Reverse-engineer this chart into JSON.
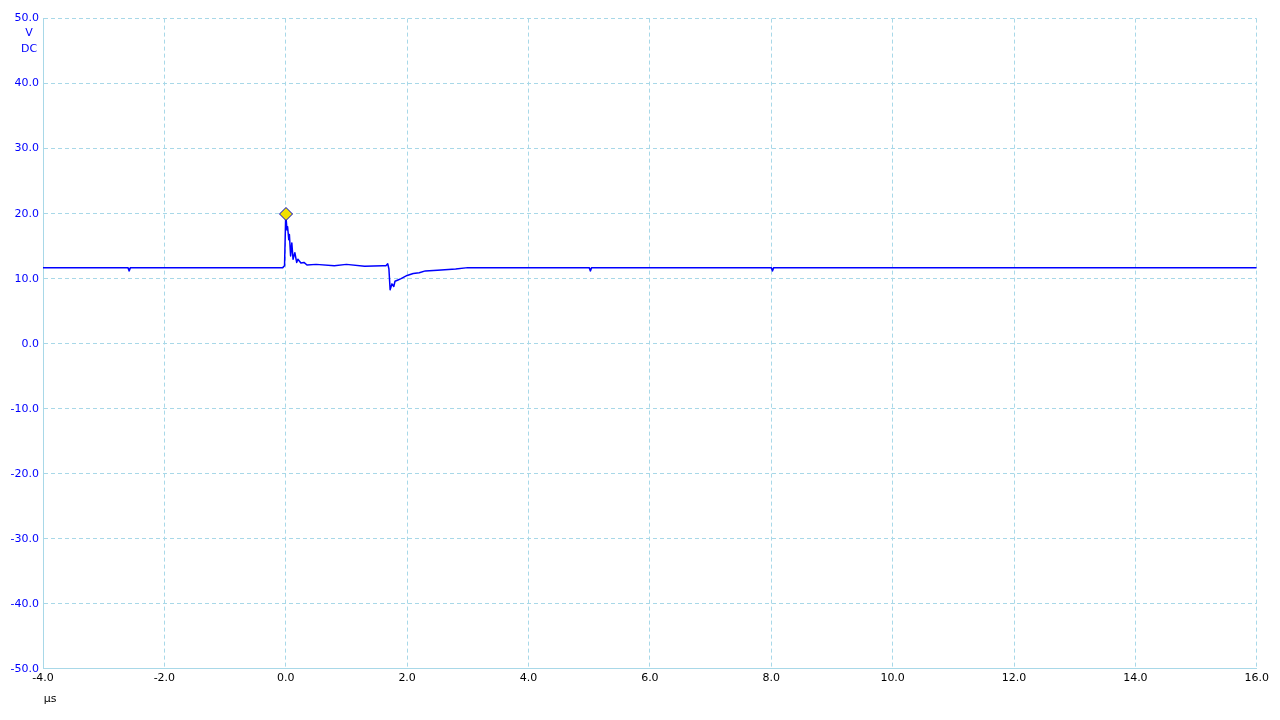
{
  "chart_data": {
    "type": "line",
    "xlabel": "µs",
    "ylabel": "V DC",
    "x": [
      -4,
      -2.6,
      -2.58,
      -2.56,
      -0.05,
      -0.02,
      0.0,
      0.02,
      0.03,
      0.05,
      0.06,
      0.08,
      0.1,
      0.12,
      0.15,
      0.18,
      0.2,
      0.25,
      0.3,
      0.35,
      0.5,
      0.8,
      1.0,
      1.3,
      1.6,
      1.65,
      1.68,
      1.7,
      1.72,
      1.75,
      1.78,
      1.8,
      1.85,
      1.9,
      2.0,
      2.1,
      2.2,
      2.3,
      2.5,
      2.8,
      3.0,
      5.0,
      5.02,
      5.04,
      8.0,
      8.02,
      8.04,
      12.0,
      16.0
    ],
    "series": [
      {
        "color": "#0000ff",
        "values": [
          11.7,
          11.7,
          11.2,
          11.7,
          11.7,
          12.0,
          20.0,
          17.5,
          18.0,
          16.0,
          16.8,
          13.5,
          15.5,
          13.0,
          14.0,
          12.5,
          13.0,
          12.4,
          12.5,
          12.1,
          12.2,
          12.0,
          12.2,
          11.9,
          12.0,
          12.0,
          12.3,
          11.5,
          8.3,
          9.2,
          8.8,
          9.6,
          9.8,
          10.0,
          10.5,
          10.8,
          10.9,
          11.2,
          11.3,
          11.5,
          11.7,
          11.7,
          11.2,
          11.7,
          11.7,
          11.2,
          11.7,
          11.7,
          11.7
        ]
      }
    ],
    "xlim": [
      -4,
      16
    ],
    "xticks": [
      {
        "value": -4,
        "label": "-4.0"
      },
      {
        "value": -2,
        "label": "-2.0"
      },
      {
        "value": 0,
        "label": "0.0"
      },
      {
        "value": 2,
        "label": "2.0"
      },
      {
        "value": 4,
        "label": "4.0"
      },
      {
        "value": 6,
        "label": "6.0"
      },
      {
        "value": 8,
        "label": "8.0"
      },
      {
        "value": 10,
        "label": "10.0"
      },
      {
        "value": 12,
        "label": "12.0"
      },
      {
        "value": 14,
        "label": "14.0"
      },
      {
        "value": 16,
        "label": "16.0"
      }
    ],
    "ylim": [
      -50,
      50
    ],
    "yticks": [
      {
        "value": -50,
        "label": "-50.0"
      },
      {
        "value": -40,
        "label": "-40.0"
      },
      {
        "value": -30,
        "label": "-30.0"
      },
      {
        "value": -20,
        "label": "-20.0"
      },
      {
        "value": -10,
        "label": "-10.0"
      },
      {
        "value": 0,
        "label": "0.0"
      },
      {
        "value": 10,
        "label": "10.0"
      },
      {
        "value": 20,
        "label": "20.0"
      },
      {
        "value": 30,
        "label": "30.0"
      },
      {
        "value": 40,
        "label": "40.0"
      },
      {
        "value": 50,
        "label": "50.0"
      }
    ],
    "grid": true,
    "legend": false,
    "marker": "none",
    "line_style": "solid"
  }
}
